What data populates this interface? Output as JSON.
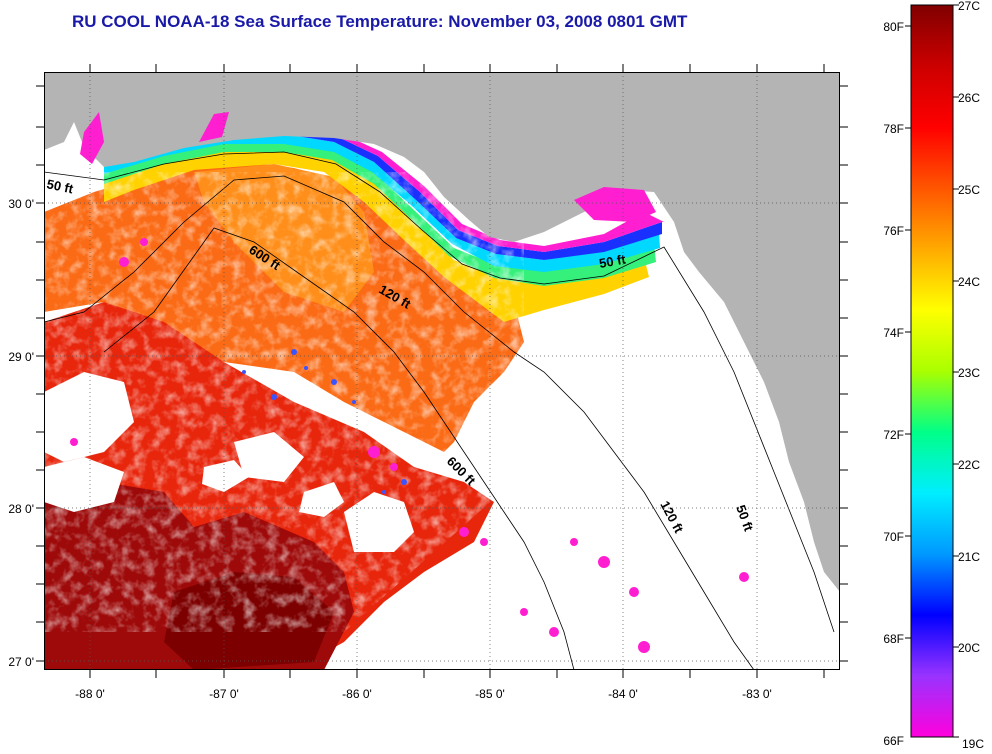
{
  "title": "RU COOL  NOAA-18  Sea Surface Temperature:  November 03, 2008 0801 GMT",
  "map": {
    "lat_labels": [
      "30 0'",
      "29 0'",
      "28 0'",
      "27 0'"
    ],
    "lon_labels": [
      "-88 0'",
      "-87 0'",
      "-86 0'",
      "-85 0'",
      "-84 0'",
      "-83 0'"
    ],
    "isobaths": [
      {
        "label": "50 ft"
      },
      {
        "label": "50 ft"
      },
      {
        "label": "50 ft"
      },
      {
        "label": "120 ft"
      },
      {
        "label": "120 ft"
      },
      {
        "label": "600 ft"
      },
      {
        "label": "600 ft"
      }
    ],
    "colors": {
      "land": "#b4b4b4",
      "cloud": "#ffffff",
      "coast": "#000000"
    }
  },
  "colorbar": {
    "fahrenheit_labels": [
      "80F",
      "78F",
      "76F",
      "74F",
      "72F",
      "70F",
      "68F",
      "66F"
    ],
    "celsius_labels": [
      "27C",
      "26C",
      "25C",
      "24C",
      "23C",
      "22C",
      "21C",
      "20C",
      "19C"
    ],
    "range_c": [
      19,
      27
    ],
    "gradient": [
      "#ff00dd",
      "#9933ff",
      "#0000ff",
      "#0099ff",
      "#00eeff",
      "#00ff88",
      "#aaff00",
      "#ffff00",
      "#ffaa00",
      "#ff5500",
      "#ff0000",
      "#cc0000",
      "#800000"
    ]
  }
}
